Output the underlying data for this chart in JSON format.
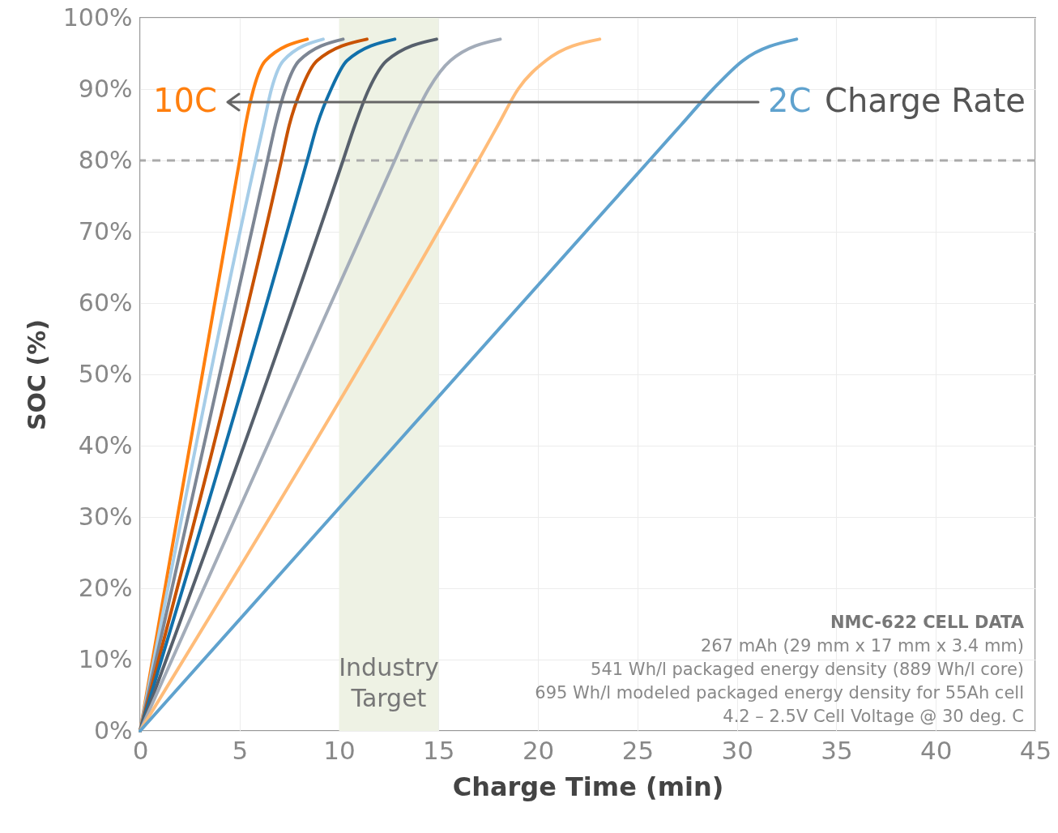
{
  "chart_data": {
    "type": "line",
    "xlabel": "Charge Time (min)",
    "ylabel": "SOC (%)",
    "xlim": [
      0,
      45
    ],
    "xticks": [
      0,
      5,
      10,
      15,
      20,
      25,
      30,
      35,
      40,
      45
    ],
    "ylim": [
      0,
      100
    ],
    "yticks": [
      {
        "value": 0,
        "label": "0%"
      },
      {
        "value": 10,
        "label": "10%"
      },
      {
        "value": 20,
        "label": "20%"
      },
      {
        "value": 30,
        "label": "30%"
      },
      {
        "value": 40,
        "label": "40%"
      },
      {
        "value": 50,
        "label": "50%"
      },
      {
        "value": 60,
        "label": "60%"
      },
      {
        "value": 70,
        "label": "70%"
      },
      {
        "value": 80,
        "label": "80%"
      },
      {
        "value": 90,
        "label": "90%"
      },
      {
        "value": 100,
        "label": "100%"
      }
    ],
    "grid": true,
    "line_style": "solid",
    "marker": "none",
    "series": [
      {
        "color": "#ff7f0e",
        "x": [
          0,
          5.0,
          5.3,
          5.7,
          6.3,
          8.4
        ],
        "values": [
          0,
          80,
          85,
          90,
          94,
          97
        ]
      },
      {
        "color": "#a6cde8",
        "x": [
          0,
          5.8,
          6.2,
          6.6,
          7.2,
          9.2
        ],
        "values": [
          0,
          80,
          85,
          90,
          94,
          97
        ]
      },
      {
        "color": "#7d8694",
        "x": [
          0,
          6.4,
          6.8,
          7.3,
          8.0,
          10.2
        ],
        "values": [
          0,
          80,
          85,
          90,
          94,
          97
        ]
      },
      {
        "color": "#c85200",
        "x": [
          0,
          7.1,
          7.5,
          8.1,
          8.9,
          11.4
        ],
        "values": [
          0,
          80,
          85,
          90,
          94,
          97
        ]
      },
      {
        "color": "#1170aa",
        "x": [
          0,
          8.4,
          8.9,
          9.6,
          10.4,
          12.8
        ],
        "values": [
          0,
          80,
          85,
          90,
          94,
          97
        ]
      },
      {
        "color": "#57606c",
        "x": [
          0,
          10.2,
          10.8,
          11.5,
          12.4,
          14.9
        ],
        "values": [
          0,
          80,
          85,
          90,
          94,
          97
        ]
      },
      {
        "color": "#a3acb9",
        "x": [
          0,
          12.8,
          13.6,
          14.5,
          15.6,
          18.1
        ],
        "values": [
          0,
          80,
          85,
          90,
          94,
          97
        ]
      },
      {
        "color": "#ffbc79",
        "x": [
          0,
          17.0,
          18.0,
          19.0,
          20.4,
          23.1
        ],
        "values": [
          0,
          80,
          85,
          90,
          94,
          97
        ]
      },
      {
        "color": "#5fa2ce",
        "x": [
          0,
          25.6,
          27.2,
          28.8,
          30.3,
          33.0
        ],
        "values": [
          0,
          80,
          85,
          90,
          94,
          97
        ]
      }
    ],
    "ref_lines": [
      {
        "axis": "y",
        "value": 80,
        "label": null,
        "color": "#aaaaaa",
        "line_style": "dashed"
      }
    ],
    "bands": [
      {
        "axis": "x",
        "from": 10,
        "to": 15,
        "label": "Industry Target",
        "color": "#eef2e4"
      }
    ],
    "annotations": [
      "10C",
      "2C",
      "Charge Rate",
      "NMC-622 CELL DATA",
      "267 mAh (29 mm x 17 mm x 3.4 mm)",
      "541 Wh/l packaged energy density (889 Wh/l core)",
      "695 Wh/l modeled packaged energy density for 55Ah cell",
      "4.2 – 2.5V Cell Voltage @ 30 deg. C"
    ]
  }
}
